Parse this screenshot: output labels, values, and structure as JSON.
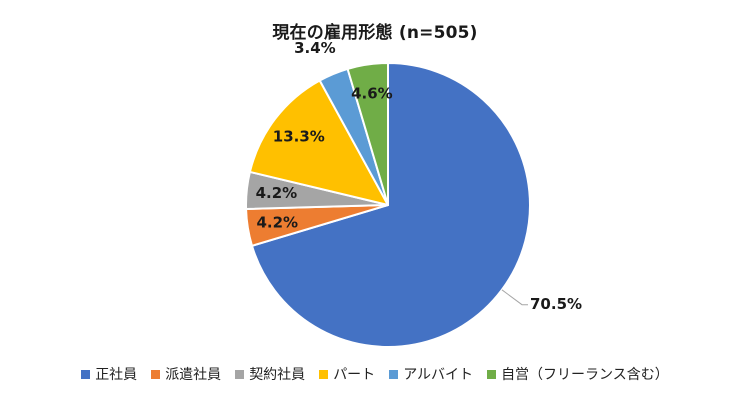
{
  "chart_data": {
    "type": "pie",
    "title": "現在の雇用形態 (n=505)",
    "categories": [
      "正社員",
      "派遣社員",
      "契約社員",
      "パート",
      "アルバイト",
      "自営（フリーランス含む）"
    ],
    "values": [
      70.5,
      4.2,
      4.2,
      13.3,
      3.4,
      4.6
    ],
    "labels": [
      "70.5%",
      "4.2%",
      "4.2%",
      "13.3%",
      "3.4%",
      "4.6%"
    ],
    "colors": [
      "#4472C4",
      "#ED7D31",
      "#A5A5A5",
      "#FFC000",
      "#5B9BD5",
      "#70AD47"
    ],
    "legend_position": "bottom",
    "start_angle": "12 o'clock",
    "direction": "clockwise"
  }
}
